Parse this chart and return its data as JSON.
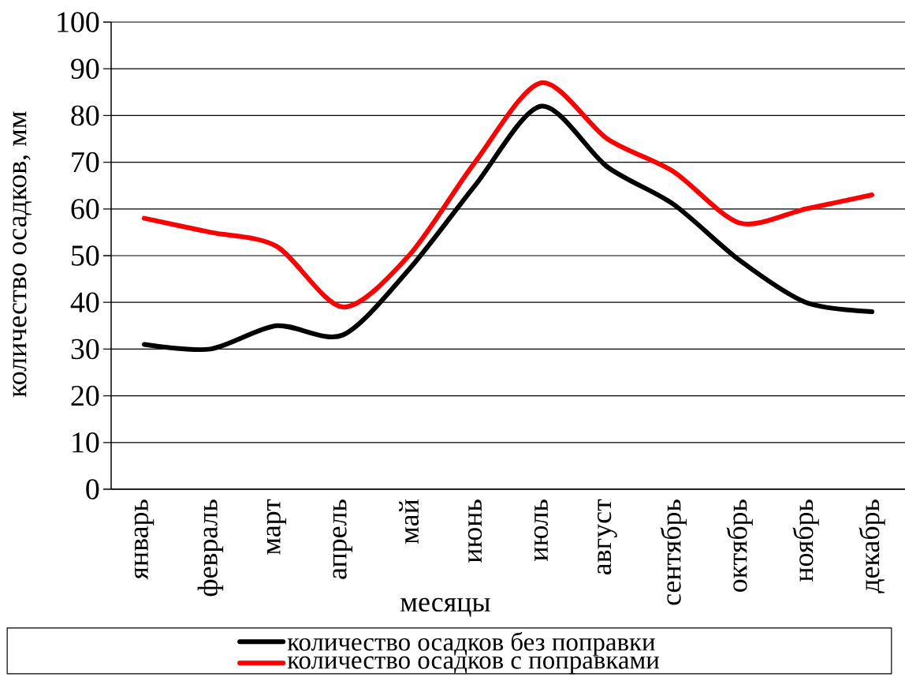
{
  "chart_data": {
    "type": "line",
    "xlabel": "месяцы",
    "ylabel": "количество осадков, мм",
    "categories": [
      "январь",
      "февраль",
      "март",
      "апрель",
      "май",
      "июнь",
      "июль",
      "август",
      "сентябрь",
      "октябрь",
      "ноябрь",
      "декабрь"
    ],
    "series": [
      {
        "name": "количество осадков без поправки",
        "color": "#000000",
        "values": [
          31,
          30,
          35,
          33,
          47,
          65,
          82,
          69,
          61,
          49,
          40,
          38
        ]
      },
      {
        "name": "количество осадков с поправками",
        "color": "#ff0000",
        "values": [
          58,
          55,
          52,
          39,
          50,
          70,
          87,
          75,
          68,
          57,
          60,
          63
        ]
      }
    ],
    "ylim": [
      0,
      100
    ],
    "yticks": [
      0,
      10,
      20,
      30,
      40,
      50,
      60,
      70,
      80,
      90,
      100
    ],
    "grid": "y",
    "legend": "bottom"
  }
}
